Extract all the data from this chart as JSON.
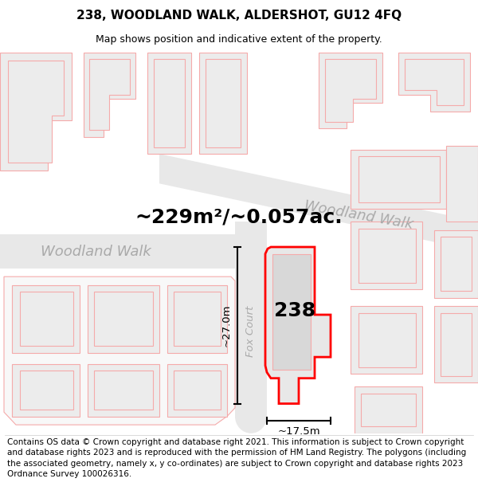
{
  "title": "238, WOODLAND WALK, ALDERSHOT, GU12 4FQ",
  "subtitle": "Map shows position and indicative extent of the property.",
  "area_label": "~229m²/~0.057ac.",
  "number_label": "238",
  "dim_width": "~17.5m",
  "dim_height": "~27.0m",
  "street_label_ww_diag": "Woodland Walk",
  "street_label_ww_horiz": "Woodland Walk",
  "street_label_fox": "Fox Court",
  "footer": "Contains OS data © Crown copyright and database right 2021. This information is subject to Crown copyright and database rights 2023 and is reproduced with the permission of HM Land Registry. The polygons (including the associated geometry, namely x, y co-ordinates) are subject to Crown copyright and database rights 2023 Ordnance Survey 100026316.",
  "map_bg": "#ffffff",
  "building_fill": "#ececec",
  "building_outline": "#f5aaaa",
  "highlight_fill": "#e8e8e8",
  "highlight_outline": "#ff0000",
  "road_fill": "#f0f0f0",
  "road_label_color": "#aaaaaa",
  "title_fontsize": 11,
  "subtitle_fontsize": 9,
  "area_fontsize": 18,
  "number_fontsize": 18,
  "footer_fontsize": 7.5
}
